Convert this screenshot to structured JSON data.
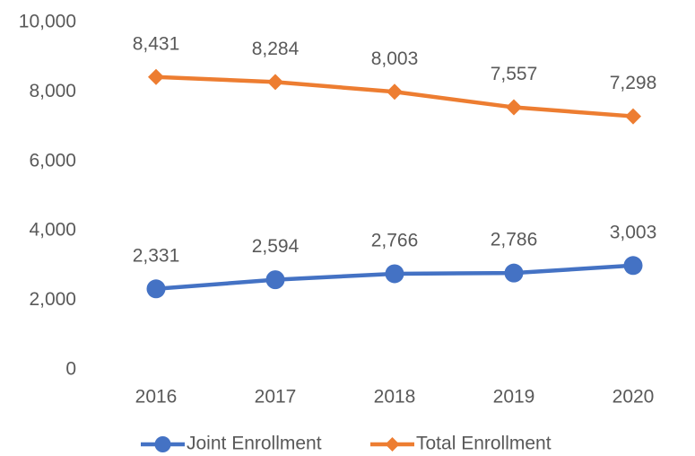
{
  "chart_data": {
    "type": "line",
    "categories": [
      "2016",
      "2017",
      "2018",
      "2019",
      "2020"
    ],
    "series": [
      {
        "name": "Joint Enrollment",
        "color": "#4472c4",
        "marker": "circle",
        "values": [
          2331,
          2594,
          2766,
          2786,
          3003
        ],
        "value_labels": [
          "2,331",
          "2,594",
          "2,766",
          "2,786",
          "3,003"
        ]
      },
      {
        "name": "Total Enrollment",
        "color": "#ed7d31",
        "marker": "diamond",
        "values": [
          8431,
          8284,
          8003,
          7557,
          7298
        ],
        "value_labels": [
          "8,431",
          "8,284",
          "8,003",
          "7,557",
          "7,298"
        ]
      }
    ],
    "ylim": [
      0,
      10000
    ],
    "yticks": [
      0,
      {
        "value": 2000,
        "label": "2,000"
      },
      {
        "value": 4000,
        "label": "4,000"
      },
      {
        "value": 6000,
        "label": "6,000"
      },
      {
        "value": 8000,
        "label": "8,000"
      },
      {
        "value": 10000,
        "label": "10,000"
      }
    ],
    "grid": false,
    "legend": "bottom"
  }
}
